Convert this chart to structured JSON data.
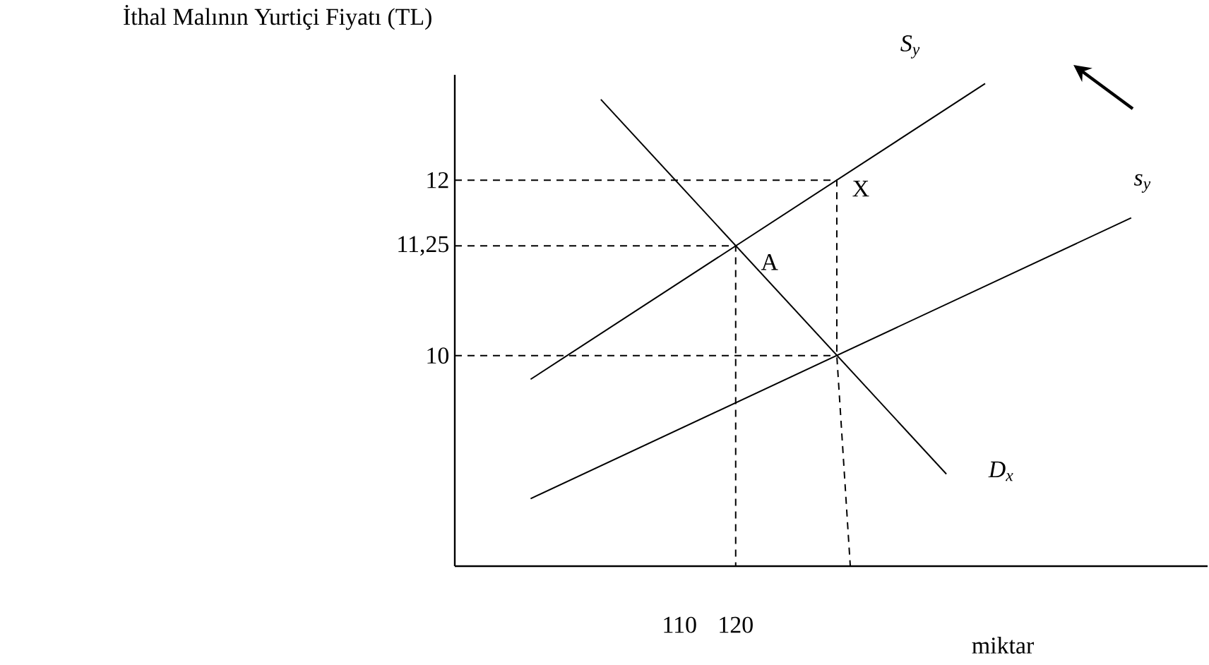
{
  "chart_data": {
    "type": "line",
    "ylabel": "İthal Malının Yurtiçi Fiyatı (TL)",
    "xlabel": "miktar",
    "xlim": [
      70,
      204
    ],
    "ylim": [
      7.6,
      13.2
    ],
    "xticks": [
      110,
      120
    ],
    "yticks": [
      10,
      {
        "value": 11.25,
        "label": "11,25"
      },
      12
    ],
    "marker": "none",
    "line_style": "solid",
    "legend": false,
    "grid": false,
    "series": [
      {
        "name": "S$_{y}$",
        "color": "#000000",
        "x": [
          83.5,
          164.4
        ],
        "values": [
          9.73,
          13.1
        ]
      },
      {
        "name": "s$_{y}$",
        "color": "#000000",
        "x": [
          83.5,
          190.4
        ],
        "values": [
          8.37,
          11.57
        ]
      },
      {
        "name": "D$_{x}$",
        "color": "#000000",
        "x": [
          96,
          157.5
        ],
        "values": [
          12.92,
          8.65
        ]
      },
      {
        "color": "#000000",
        "line_style": "dashed",
        "x": [
          70,
          138,
          138,
          140.4
        ],
        "values": [
          12,
          12,
          10,
          7.6
        ]
      },
      {
        "color": "#000000",
        "line_style": "dashed",
        "x": [
          70,
          138
        ],
        "values": [
          10,
          10
        ]
      },
      {
        "color": "#000000",
        "line_style": "dashed",
        "x": [
          70,
          120,
          120
        ],
        "values": [
          11.25,
          11.25,
          7.6
        ]
      }
    ],
    "annotations": [
      {
        "text": "X",
        "x": 138,
        "y": 12
      },
      {
        "text": "A",
        "x": 120,
        "y": 11.25
      }
    ]
  }
}
